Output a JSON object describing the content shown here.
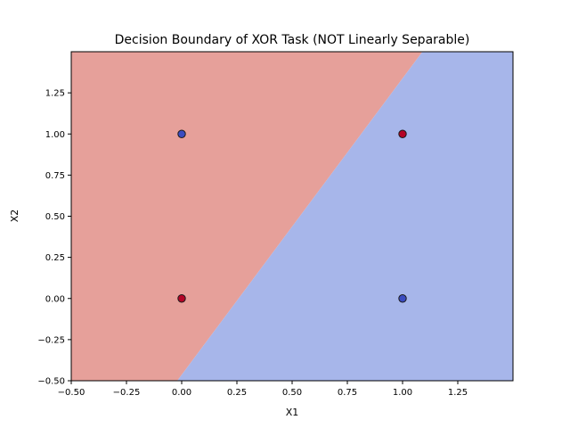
{
  "chart_data": {
    "type": "scatter",
    "title": "Decision Boundary of XOR Task (NOT Linearly Separable)",
    "xlabel": "X1",
    "ylabel": "X2",
    "xlim": [
      -0.5,
      1.5
    ],
    "ylim": [
      -0.5,
      1.5
    ],
    "grid": false,
    "xticks": [
      -0.5,
      -0.25,
      0.0,
      0.25,
      0.5,
      0.75,
      1.0,
      1.25
    ],
    "xtick_labels": [
      "−0.50",
      "−0.25",
      "0.00",
      "0.25",
      "0.50",
      "0.75",
      "1.00",
      "1.25"
    ],
    "yticks": [
      -0.5,
      -0.25,
      0.0,
      0.25,
      0.5,
      0.75,
      1.0,
      1.25
    ],
    "ytick_labels": [
      "−0.50",
      "−0.25",
      "0.00",
      "0.25",
      "0.50",
      "0.75",
      "1.00",
      "1.25"
    ],
    "points": [
      {
        "x": 0,
        "y": 0,
        "class": 1
      },
      {
        "x": 0,
        "y": 1,
        "class": 0
      },
      {
        "x": 1,
        "y": 0,
        "class": 0
      },
      {
        "x": 1,
        "y": 1,
        "class": 1
      }
    ],
    "decision_boundary": {
      "from": {
        "x": -0.02,
        "y": -0.5
      },
      "to": {
        "x": 1.09,
        "y": 1.5
      },
      "region_left_class": 1,
      "region_right_class": 0
    },
    "colors": {
      "region_class_1": "#e6a09a",
      "region_class_0": "#a7b6ea",
      "point_class_1": "#b40426",
      "point_class_0": "#3b4cc0",
      "point_edge": "#1a1a1a"
    }
  }
}
